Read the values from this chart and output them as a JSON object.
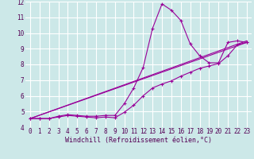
{
  "bg_color": "#cce8e8",
  "grid_color": "#ffffff",
  "line_color": "#990099",
  "xlabel": "Windchill (Refroidissement éolien,°C)",
  "xlim": [
    -0.5,
    23.5
  ],
  "ylim": [
    4,
    12
  ],
  "yticks": [
    4,
    5,
    6,
    7,
    8,
    9,
    10,
    11,
    12
  ],
  "xticks": [
    0,
    1,
    2,
    3,
    4,
    5,
    6,
    7,
    8,
    9,
    10,
    11,
    12,
    13,
    14,
    15,
    16,
    17,
    18,
    19,
    20,
    21,
    22,
    23
  ],
  "series": [
    {
      "x": [
        0,
        1,
        2,
        3,
        4,
        5,
        6,
        7,
        8,
        9,
        10,
        11,
        12,
        13,
        14,
        15,
        16,
        17,
        18,
        19,
        20,
        21,
        22,
        23
      ],
      "y": [
        4.55,
        4.55,
        4.55,
        4.7,
        4.8,
        4.75,
        4.7,
        4.7,
        4.75,
        4.75,
        5.5,
        6.5,
        7.8,
        10.3,
        11.85,
        11.45,
        10.8,
        9.3,
        8.55,
        8.1,
        8.1,
        9.4,
        9.5,
        9.4
      ],
      "marker": true
    },
    {
      "x": [
        0,
        1,
        2,
        3,
        4,
        5,
        6,
        7,
        8,
        9,
        10,
        11,
        12,
        13,
        14,
        15,
        16,
        17,
        18,
        19,
        20,
        21,
        22,
        23
      ],
      "y": [
        4.55,
        4.55,
        4.55,
        4.65,
        4.75,
        4.7,
        4.65,
        4.6,
        4.65,
        4.6,
        4.95,
        5.4,
        6.0,
        6.5,
        6.75,
        6.95,
        7.25,
        7.5,
        7.75,
        7.9,
        8.05,
        8.55,
        9.25,
        9.4
      ],
      "marker": true
    },
    {
      "x": [
        0,
        23
      ],
      "y": [
        4.55,
        9.5
      ],
      "marker": false
    },
    {
      "x": [
        0,
        23
      ],
      "y": [
        4.55,
        9.4
      ],
      "marker": false
    }
  ]
}
